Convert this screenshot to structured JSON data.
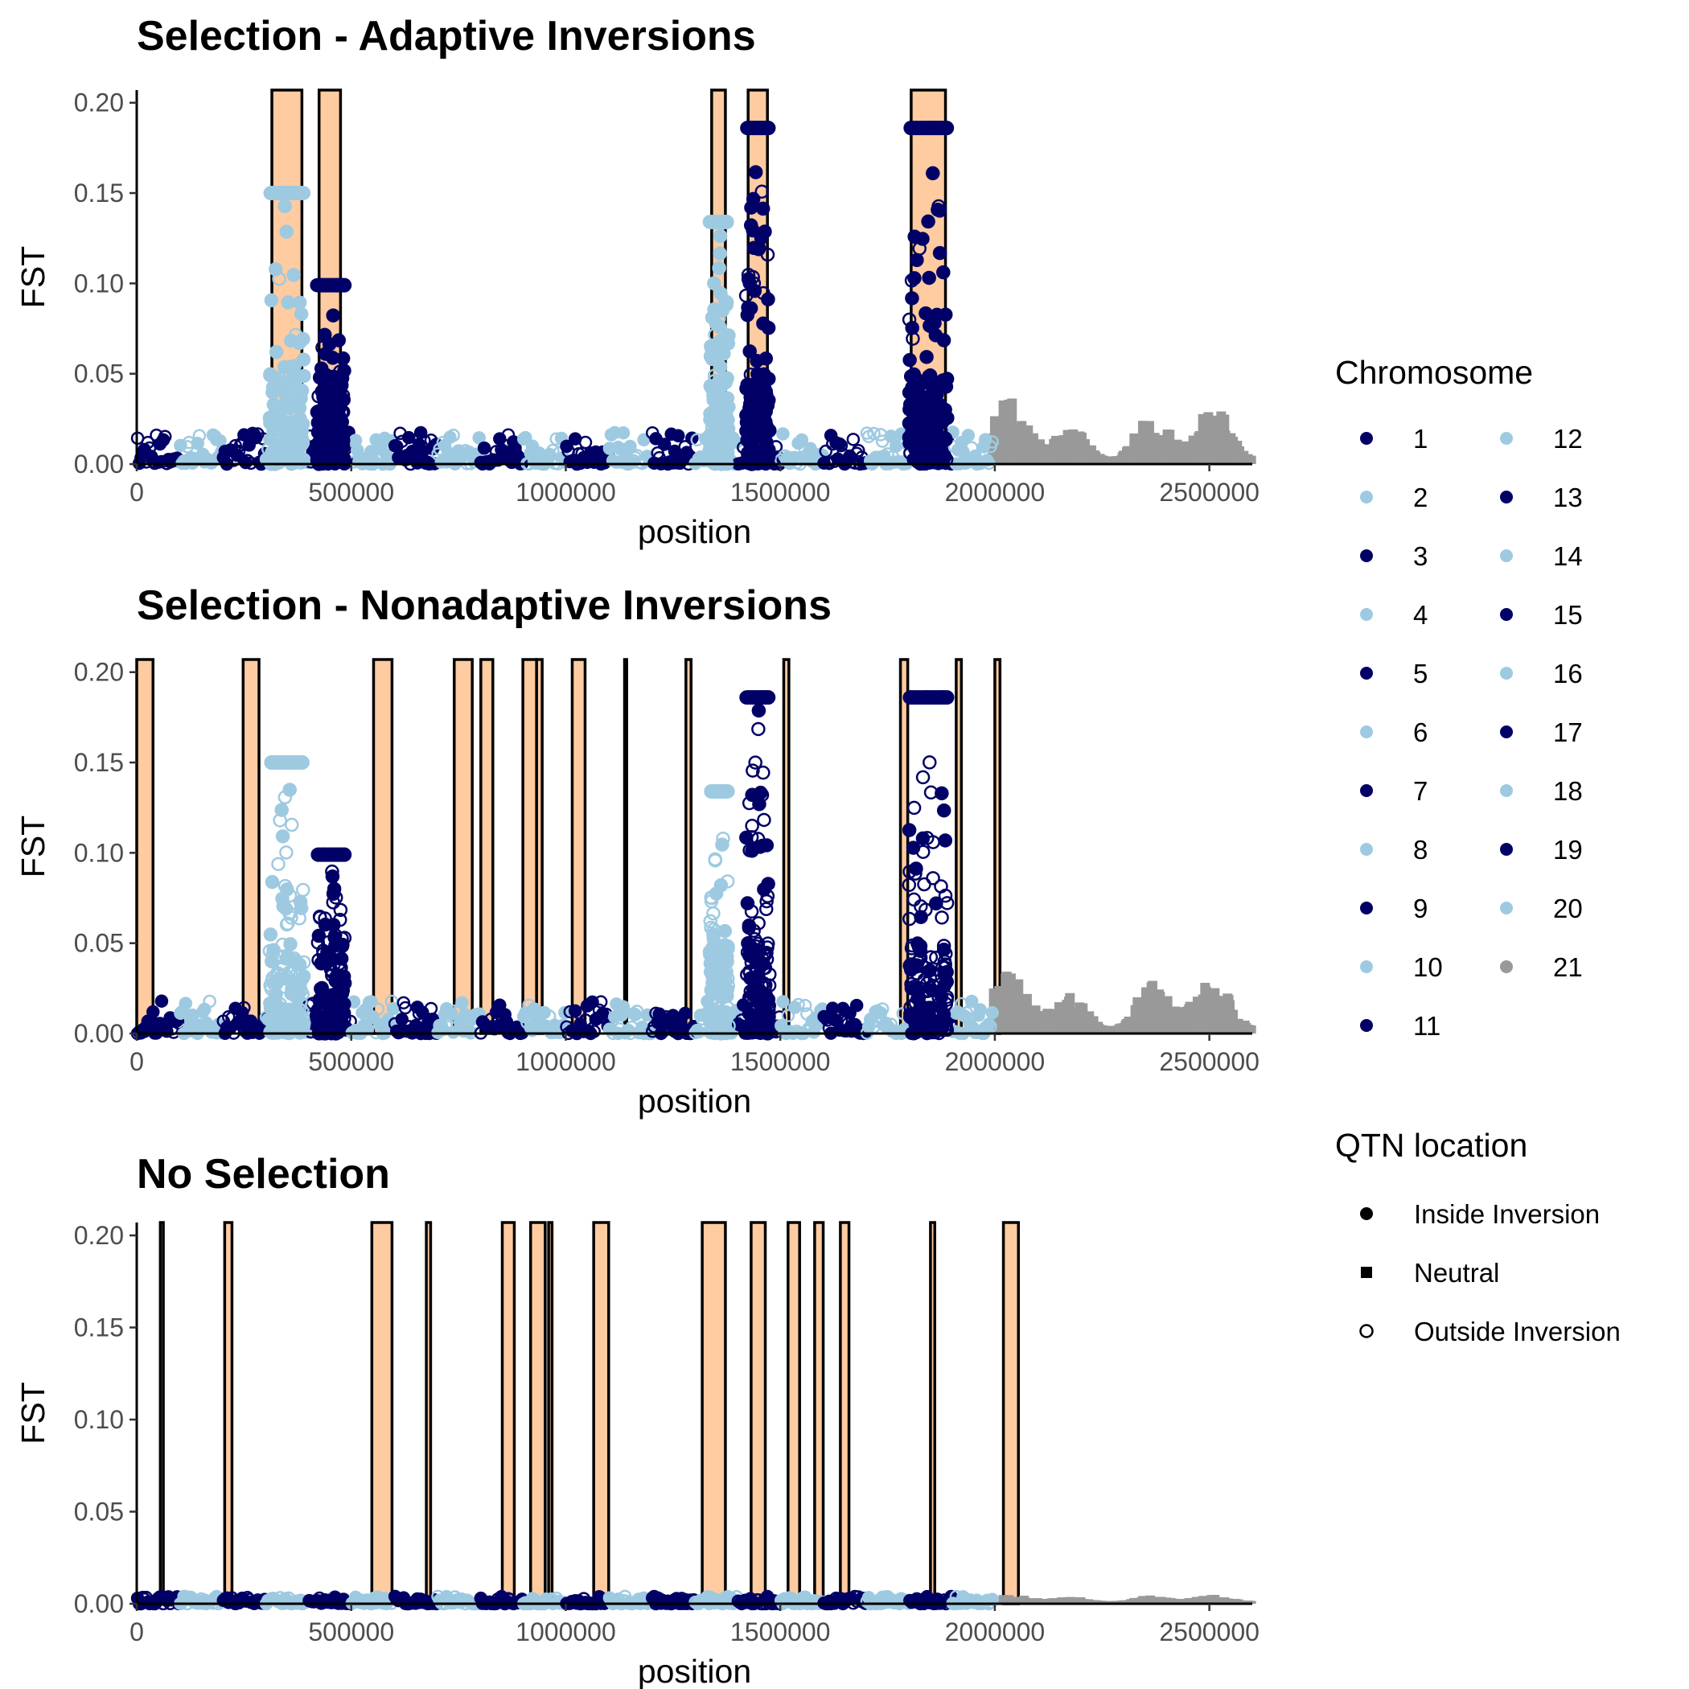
{
  "chart_data": [
    {
      "type": "scatter",
      "title": "Selection - Adaptive Inversions",
      "xlabel": "position",
      "ylabel": "FST",
      "xlim": [
        0,
        2600000
      ],
      "ylim": [
        0,
        0.207
      ],
      "x_ticks": [
        0,
        500000,
        1000000,
        1500000,
        2000000,
        2500000
      ],
      "x_tick_labels": [
        "0",
        "500000",
        "1000000",
        "1500000",
        "2000000",
        "2500000"
      ],
      "y_ticks": [
        0,
        0.05,
        0.1,
        0.15,
        0.2
      ],
      "y_tick_labels": [
        "0.00",
        "0.05",
        "0.10",
        "0.15",
        "0.20"
      ],
      "grid": false,
      "inversions": [
        {
          "start": 315000,
          "end": 385000
        },
        {
          "start": 425000,
          "end": 475000
        },
        {
          "start": 1340000,
          "end": 1372000
        },
        {
          "start": 1425000,
          "end": 1470000
        },
        {
          "start": 1805000,
          "end": 1885000
        }
      ],
      "peaks": [
        {
          "x": [
            310000,
            390000
          ],
          "fst": 0.15,
          "color": "light",
          "shape": "inside"
        },
        {
          "x": [
            420000,
            485000
          ],
          "fst": 0.099,
          "color": "dark",
          "shape": "inside"
        },
        {
          "x": [
            1335000,
            1380000
          ],
          "fst": 0.134,
          "color": "light",
          "shape": "inside"
        },
        {
          "x": [
            1420000,
            1475000
          ],
          "fst": 0.186,
          "color": "dark",
          "shape": "inside"
        },
        {
          "x": [
            1800000,
            1890000
          ],
          "fst": 0.186,
          "color": "dark",
          "shape": "inside"
        }
      ],
      "neutral_region": {
        "x": [
          1990000,
          2600000
        ],
        "fst_range": [
          0.004,
          0.039
        ]
      }
    },
    {
      "type": "scatter",
      "title": "Selection - Nonadaptive Inversions",
      "xlabel": "position",
      "ylabel": "FST",
      "xlim": [
        0,
        2600000
      ],
      "ylim": [
        0,
        0.207
      ],
      "x_ticks": [
        0,
        500000,
        1000000,
        1500000,
        2000000,
        2500000
      ],
      "x_tick_labels": [
        "0",
        "500000",
        "1000000",
        "1500000",
        "2000000",
        "2500000"
      ],
      "y_ticks": [
        0,
        0.05,
        0.1,
        0.15,
        0.2
      ],
      "y_tick_labels": [
        "0.00",
        "0.05",
        "0.10",
        "0.15",
        "0.20"
      ],
      "grid": false,
      "inversions": [
        {
          "start": 0,
          "end": 38000
        },
        {
          "start": 248000,
          "end": 285000
        },
        {
          "start": 552000,
          "end": 595000
        },
        {
          "start": 740000,
          "end": 782000
        },
        {
          "start": 802000,
          "end": 830000
        },
        {
          "start": 900000,
          "end": 932000
        },
        {
          "start": 932000,
          "end": 945000
        },
        {
          "start": 1015000,
          "end": 1045000
        },
        {
          "start": 1137000,
          "end": 1142000
        },
        {
          "start": 1280000,
          "end": 1292000
        },
        {
          "start": 1508000,
          "end": 1520000
        },
        {
          "start": 1780000,
          "end": 1797000
        },
        {
          "start": 1910000,
          "end": 1922000
        },
        {
          "start": 2000000,
          "end": 2012000
        }
      ],
      "peaks": [
        {
          "x": [
            310000,
            390000
          ],
          "fst": 0.15,
          "color": "light",
          "shape": "outside"
        },
        {
          "x": [
            420000,
            485000
          ],
          "fst": 0.099,
          "color": "dark",
          "shape": "outside"
        },
        {
          "x": [
            1335000,
            1380000
          ],
          "fst": 0.134,
          "color": "light",
          "shape": "outside"
        },
        {
          "x": [
            1420000,
            1475000
          ],
          "fst": 0.186,
          "color": "dark",
          "shape": "outside"
        },
        {
          "x": [
            1800000,
            1890000
          ],
          "fst": 0.186,
          "color": "dark",
          "shape": "outside"
        }
      ],
      "neutral_region": {
        "x": [
          1990000,
          2600000
        ],
        "fst_range": [
          0.004,
          0.039
        ]
      }
    },
    {
      "type": "scatter",
      "title": "No Selection",
      "xlabel": "position",
      "ylabel": "FST",
      "xlim": [
        0,
        2600000
      ],
      "ylim": [
        0,
        0.207
      ],
      "x_ticks": [
        0,
        500000,
        1000000,
        1500000,
        2000000,
        2500000
      ],
      "x_tick_labels": [
        "0",
        "500000",
        "1000000",
        "1500000",
        "2000000",
        "2500000"
      ],
      "y_ticks": [
        0,
        0.05,
        0.1,
        0.15,
        0.2
      ],
      "y_tick_labels": [
        "0.00",
        "0.05",
        "0.10",
        "0.15",
        "0.20"
      ],
      "grid": false,
      "inversions": [
        {
          "start": 55000,
          "end": 62000
        },
        {
          "start": 205000,
          "end": 222000
        },
        {
          "start": 548000,
          "end": 595000
        },
        {
          "start": 675000,
          "end": 685000
        },
        {
          "start": 852000,
          "end": 880000
        },
        {
          "start": 918000,
          "end": 952000
        },
        {
          "start": 960000,
          "end": 968000
        },
        {
          "start": 1065000,
          "end": 1100000
        },
        {
          "start": 1318000,
          "end": 1372000
        },
        {
          "start": 1432000,
          "end": 1465000
        },
        {
          "start": 1518000,
          "end": 1545000
        },
        {
          "start": 1580000,
          "end": 1600000
        },
        {
          "start": 1640000,
          "end": 1660000
        },
        {
          "start": 1850000,
          "end": 1860000
        },
        {
          "start": 2020000,
          "end": 2055000
        }
      ],
      "peaks": [],
      "neutral_region": {
        "x": [
          1990000,
          2600000
        ],
        "fst_range": [
          0.0015,
          0.006
        ]
      }
    }
  ],
  "colors": {
    "inversion_fill": "#FFCBA0",
    "dark_blue": "#000066",
    "light_blue": "#9ECAE1",
    "grey": "#999999"
  },
  "legend": {
    "chromosome_title": "Chromosome",
    "chromosomes": [
      {
        "label": "1",
        "color": "#000066"
      },
      {
        "label": "2",
        "color": "#9ECAE1"
      },
      {
        "label": "3",
        "color": "#000066"
      },
      {
        "label": "4",
        "color": "#9ECAE1"
      },
      {
        "label": "5",
        "color": "#000066"
      },
      {
        "label": "6",
        "color": "#9ECAE1"
      },
      {
        "label": "7",
        "color": "#000066"
      },
      {
        "label": "8",
        "color": "#9ECAE1"
      },
      {
        "label": "9",
        "color": "#000066"
      },
      {
        "label": "10",
        "color": "#9ECAE1"
      },
      {
        "label": "11",
        "color": "#000066"
      },
      {
        "label": "12",
        "color": "#9ECAE1"
      },
      {
        "label": "13",
        "color": "#000066"
      },
      {
        "label": "14",
        "color": "#9ECAE1"
      },
      {
        "label": "15",
        "color": "#000066"
      },
      {
        "label": "16",
        "color": "#9ECAE1"
      },
      {
        "label": "17",
        "color": "#000066"
      },
      {
        "label": "18",
        "color": "#9ECAE1"
      },
      {
        "label": "19",
        "color": "#000066"
      },
      {
        "label": "20",
        "color": "#9ECAE1"
      },
      {
        "label": "21",
        "color": "#999999"
      }
    ],
    "qtn_title": "QTN location",
    "qtn_items": [
      {
        "label": "Inside Inversion",
        "shape": "filled-circle"
      },
      {
        "label": "Neutral",
        "shape": "filled-square"
      },
      {
        "label": "Outside Inversion",
        "shape": "open-circle"
      }
    ]
  }
}
